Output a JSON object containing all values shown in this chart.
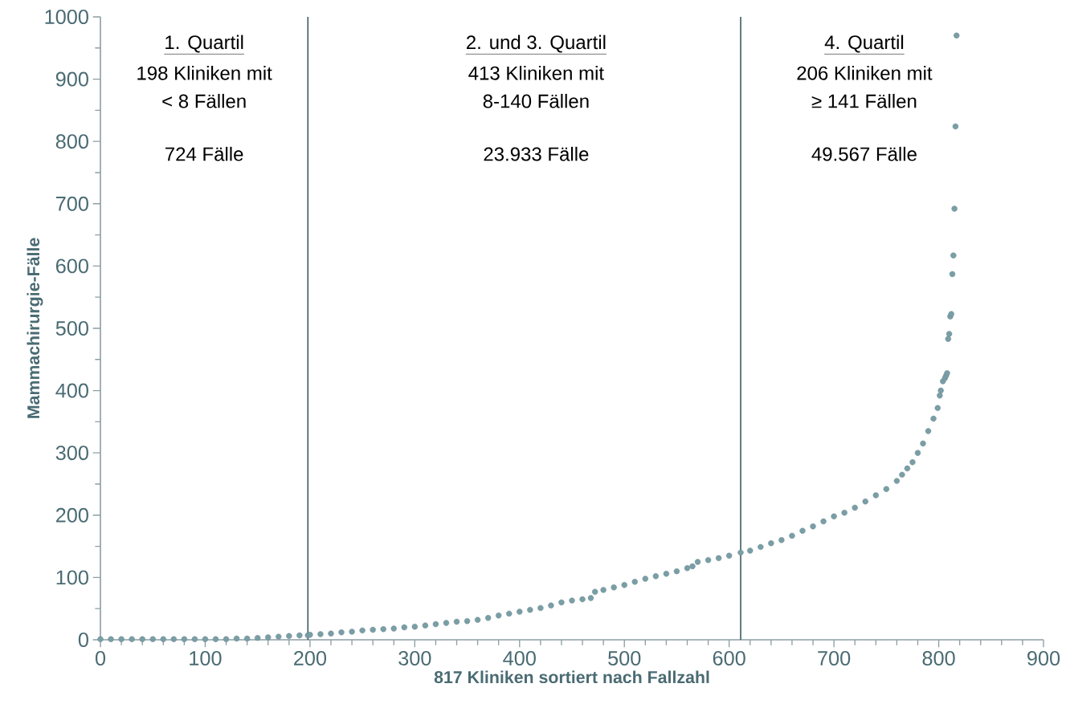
{
  "chart_data": {
    "type": "scatter",
    "xlabel": "817 Kliniken sortiert nach Fallzahl",
    "ylabel": "Mammachirurgie-Fälle",
    "x": [
      0,
      10,
      20,
      30,
      40,
      50,
      60,
      70,
      80,
      90,
      100,
      110,
      120,
      130,
      140,
      150,
      160,
      170,
      180,
      190,
      198,
      200,
      210,
      220,
      230,
      240,
      250,
      260,
      270,
      280,
      290,
      300,
      310,
      320,
      330,
      340,
      350,
      360,
      370,
      380,
      390,
      400,
      410,
      420,
      430,
      440,
      450,
      460,
      468,
      472,
      480,
      490,
      500,
      510,
      520,
      530,
      540,
      550,
      560,
      565,
      570,
      580,
      590,
      600,
      611,
      620,
      630,
      640,
      650,
      660,
      670,
      680,
      690,
      700,
      710,
      720,
      730,
      740,
      750,
      760,
      765,
      770,
      775,
      780,
      785,
      790,
      795,
      799,
      801,
      802,
      804,
      806,
      807,
      808,
      809,
      810,
      811,
      812,
      813,
      814,
      815,
      816,
      817
    ],
    "values": [
      1,
      1,
      1,
      1,
      1,
      1,
      1,
      1,
      1,
      1,
      1,
      1,
      1,
      2,
      2,
      3,
      4,
      5,
      6,
      7,
      7,
      8,
      9,
      10,
      12,
      13,
      15,
      16,
      17,
      18,
      20,
      21,
      23,
      25,
      27,
      29,
      30,
      32,
      35,
      39,
      42,
      45,
      48,
      51,
      55,
      60,
      63,
      65,
      67,
      77,
      80,
      84,
      88,
      93,
      98,
      102,
      106,
      110,
      115,
      118,
      125,
      128,
      131,
      135,
      140,
      143,
      149,
      155,
      160,
      167,
      175,
      182,
      190,
      198,
      204,
      212,
      222,
      232,
      242,
      255,
      265,
      275,
      285,
      300,
      315,
      335,
      355,
      372,
      392,
      400,
      415,
      420,
      424,
      428,
      483,
      491,
      519,
      523,
      587,
      617,
      692,
      824,
      970
    ],
    "color": "#7a9ea6",
    "marker": "circle",
    "xlim": [
      0,
      900
    ],
    "xticks": [
      0,
      100,
      200,
      300,
      400,
      500,
      600,
      700,
      800,
      900
    ],
    "ylim": [
      0,
      1000
    ],
    "yticks": [
      0,
      100,
      200,
      300,
      400,
      500,
      600,
      700,
      800,
      900,
      1000
    ],
    "ref_lines": [
      {
        "axis": "x",
        "value": 198,
        "color": "#3d5a63"
      },
      {
        "axis": "x",
        "value": 611,
        "color": "#3d5a63"
      }
    ],
    "annotations": [
      "1. Quartil",
      "198 Kliniken mit",
      "< 8 Fällen",
      "724 Fälle",
      "2. und 3. Quartil",
      "413 Kliniken mit",
      "8-140 Fällen",
      "23.933 Fälle",
      "4. Quartil",
      "206 Kliniken mit",
      "≥ 141 Fällen",
      "49.567 Fälle"
    ]
  }
}
